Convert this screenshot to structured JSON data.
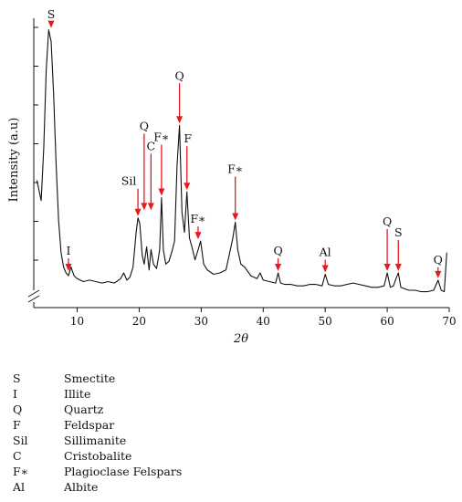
{
  "chart_data": {
    "type": "line",
    "xlabel": "2θ",
    "ylabel": "Intensity (a.u)",
    "xlim": [
      3,
      70
    ],
    "ylim": [
      0,
      100
    ],
    "xticks": [
      10,
      20,
      30,
      40,
      50,
      60,
      70
    ],
    "y_tick_labels": "none",
    "y_axis_break": true,
    "arrow_color": "#e8191c",
    "line_color": "#111111",
    "series": [
      {
        "x": [
          3.5,
          4.2,
          4.6,
          5.0,
          5.4,
          5.8,
          6.2,
          6.6,
          7.0,
          7.4,
          7.8,
          8.2,
          8.6,
          9.0,
          9.5,
          10,
          11,
          12,
          13,
          14,
          15,
          16,
          17,
          17.5,
          18,
          18.5,
          19,
          19.5,
          19.8,
          20.1,
          20.5,
          20.8,
          21.2,
          21.6,
          21.9,
          22.3,
          22.8,
          23.3,
          23.6,
          23.9,
          24.3,
          24.8,
          25.3,
          25.7,
          26.1,
          26.5,
          26.9,
          27.3,
          27.7,
          28.1,
          28.5,
          29,
          29.5,
          29.9,
          30.4,
          31,
          32,
          33,
          34,
          34.6,
          35.1,
          35.5,
          35.9,
          36.4,
          37,
          38,
          39,
          39.5,
          40,
          41,
          42,
          42.4,
          42.8,
          43.5,
          44.5,
          45.5,
          46.5,
          47.5,
          48.5,
          49.5,
          50,
          50.5,
          51.5,
          52.5,
          53.5,
          54.5,
          55.5,
          56.5,
          57.5,
          58.5,
          59.5,
          60,
          60.5,
          61,
          61.5,
          61.8,
          62.2,
          62.8,
          63.5,
          64.5,
          65.5,
          66.5,
          67.5,
          68.2,
          68.7,
          69.2,
          69.6
        ],
        "y": [
          44,
          37,
          55,
          82,
          96,
          92,
          74,
          50,
          30,
          19,
          14,
          12,
          11,
          14,
          11,
          10,
          9,
          9.5,
          9,
          8.5,
          9,
          8.5,
          10,
          12,
          9.5,
          10.5,
          14,
          26,
          31,
          29,
          18,
          15,
          21,
          13,
          20,
          15,
          13.5,
          20,
          38,
          20,
          15,
          16,
          19.5,
          23,
          49,
          63,
          33,
          26,
          40,
          24,
          21,
          16.5,
          20,
          23,
          15,
          13,
          11.5,
          12,
          13,
          19,
          24,
          29.5,
          20,
          15,
          14,
          11,
          10,
          12,
          9.5,
          9,
          8.5,
          12,
          8.5,
          8,
          8,
          7.5,
          7.5,
          8,
          8,
          7.5,
          11.5,
          8,
          7.5,
          7.5,
          8,
          8.5,
          8,
          7.5,
          7,
          7,
          7.5,
          12,
          7,
          7.5,
          10.5,
          12,
          7,
          6.5,
          6,
          6,
          5.5,
          5.5,
          6,
          9.5,
          6,
          5.5,
          19
        ]
      }
    ],
    "annotations": [
      {
        "label": "S",
        "x": 5.8,
        "y": 96
      },
      {
        "label": "I",
        "x": 8.6,
        "y": 12
      },
      {
        "label": "Sil",
        "x": 19.8,
        "y": 31
      },
      {
        "label": "Q",
        "x": 20.8,
        "y": 33
      },
      {
        "label": "C",
        "x": 21.9,
        "y": 33
      },
      {
        "label": "F∗",
        "x": 23.6,
        "y": 38
      },
      {
        "label": "Q",
        "x": 26.5,
        "y": 63
      },
      {
        "label": "F",
        "x": 27.7,
        "y": 40
      },
      {
        "label": "F∗",
        "x": 29.5,
        "y": 23
      },
      {
        "label": "F∗",
        "x": 35.5,
        "y": 29.5
      },
      {
        "label": "Q",
        "x": 42.4,
        "y": 12
      },
      {
        "label": "Al",
        "x": 50,
        "y": 11.5
      },
      {
        "label": "Q",
        "x": 60,
        "y": 12
      },
      {
        "label": "S",
        "x": 61.8,
        "y": 12
      },
      {
        "label": "Q",
        "x": 68.2,
        "y": 9.5
      }
    ]
  },
  "legend": [
    {
      "abbr": "S",
      "name": "Smectite"
    },
    {
      "abbr": "I",
      "name": "Illite"
    },
    {
      "abbr": "Q",
      "name": "Quartz"
    },
    {
      "abbr": "F",
      "name": "Feldspar"
    },
    {
      "abbr": "Sil",
      "name": "Sillimanite"
    },
    {
      "abbr": "C",
      "name": "Cristobalite"
    },
    {
      "abbr": "F∗",
      "name": "Plagioclase Felspars"
    },
    {
      "abbr": "Al",
      "name": "Albite"
    }
  ]
}
